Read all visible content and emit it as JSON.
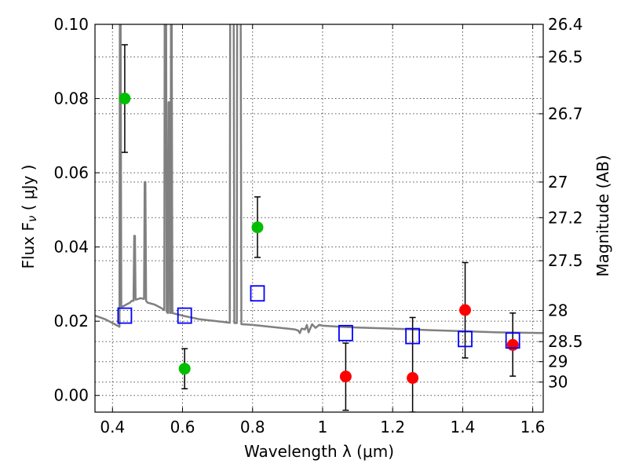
{
  "chart_data": {
    "type": "scatter",
    "xlabel": "Wavelength  λ (μm)",
    "ylabel": "Flux  F",
    "ylabel_sub": "ν",
    "ylabel_unit": " ( μJy )",
    "y2label": "Magnitude (AB)",
    "xlim": [
      0.35,
      1.63
    ],
    "ylim": [
      -0.0045,
      0.1
    ],
    "x_ticks": [
      0.4,
      0.6,
      0.8,
      1.0,
      1.2,
      1.4,
      1.6
    ],
    "x_tick_labels": [
      "0.4",
      "0.6",
      "0.8",
      "1",
      "1.2",
      "1.4",
      "1.6"
    ],
    "y_ticks": [
      0.0,
      0.02,
      0.04,
      0.06,
      0.08,
      0.1
    ],
    "y_tick_labels": [
      "0.00",
      "0.02",
      "0.04",
      "0.06",
      "0.08",
      "0.10"
    ],
    "magnitude_ticks": [
      {
        "label": "26.4",
        "flux": 0.1
      },
      {
        "label": "26.5",
        "flux": 0.0912
      },
      {
        "label": "26.7",
        "flux": 0.0759
      },
      {
        "label": "27",
        "flux": 0.0575
      },
      {
        "label": "27.2",
        "flux": 0.0479
      },
      {
        "label": "27.5",
        "flux": 0.0363
      },
      {
        "label": "28",
        "flux": 0.0229
      },
      {
        "label": "28.5",
        "flux": 0.0145
      },
      {
        "label": "29",
        "flux": 0.0091
      },
      {
        "label": "30",
        "flux": 0.0036
      }
    ],
    "grid": true,
    "colors": {
      "detections": "#00bf00",
      "upper_limits": "#ff0000",
      "model_photometry": "#0000ff",
      "model_spectrum": "#808080"
    },
    "series": [
      {
        "marker": "circle",
        "color": "#00bf00",
        "points": [
          {
            "x": 0.435,
            "y": 0.08,
            "yerr_low": 0.0655,
            "yerr_high": 0.0945
          },
          {
            "x": 0.606,
            "y": 0.0072,
            "yerr_low": 0.0018,
            "yerr_high": 0.0126
          },
          {
            "x": 0.814,
            "y": 0.0453,
            "yerr_low": 0.0372,
            "yerr_high": 0.0535
          }
        ]
      },
      {
        "marker": "circle",
        "color": "#ff0000",
        "points": [
          {
            "x": 1.066,
            "y": 0.0051,
            "yerr_low": -0.004,
            "yerr_high": 0.0141
          },
          {
            "x": 1.257,
            "y": 0.0047,
            "yerr_low": -0.0045,
            "yerr_high": 0.021
          },
          {
            "x": 1.407,
            "y": 0.023,
            "yerr_low": 0.0101,
            "yerr_high": 0.0358
          },
          {
            "x": 1.543,
            "y": 0.0136,
            "yerr_low": 0.0052,
            "yerr_high": 0.0222
          }
        ]
      },
      {
        "marker": "open-square",
        "color": "#0000ff",
        "points": [
          {
            "x": 0.435,
            "y": 0.0215
          },
          {
            "x": 0.606,
            "y": 0.0215
          },
          {
            "x": 0.814,
            "y": 0.0275
          },
          {
            "x": 1.066,
            "y": 0.0168
          },
          {
            "x": 1.257,
            "y": 0.016
          },
          {
            "x": 1.407,
            "y": 0.0152
          },
          {
            "x": 1.543,
            "y": 0.0148
          }
        ]
      },
      {
        "type": "line",
        "color": "#808080",
        "points": [
          [
            0.35,
            0.0215
          ],
          [
            0.38,
            0.0205
          ],
          [
            0.41,
            0.019
          ],
          [
            0.42,
            0.0185
          ],
          [
            0.421,
            0.105
          ],
          [
            0.423,
            0.105
          ],
          [
            0.425,
            0.024
          ],
          [
            0.43,
            0.024
          ],
          [
            0.44,
            0.0245
          ],
          [
            0.45,
            0.025
          ],
          [
            0.455,
            0.0255
          ],
          [
            0.46,
            0.0255
          ],
          [
            0.462,
            0.043
          ],
          [
            0.464,
            0.043
          ],
          [
            0.466,
            0.0258
          ],
          [
            0.48,
            0.0262
          ],
          [
            0.49,
            0.026
          ],
          [
            0.492,
            0.0575
          ],
          [
            0.494,
            0.0575
          ],
          [
            0.496,
            0.0255
          ],
          [
            0.5,
            0.025
          ],
          [
            0.52,
            0.0245
          ],
          [
            0.54,
            0.0235
          ],
          [
            0.548,
            0.023
          ],
          [
            0.549,
            0.105
          ],
          [
            0.553,
            0.105
          ],
          [
            0.555,
            0.0225
          ],
          [
            0.558,
            0.0222
          ],
          [
            0.56,
            0.079
          ],
          [
            0.562,
            0.079
          ],
          [
            0.564,
            0.0222
          ],
          [
            0.566,
            0.0222
          ],
          [
            0.567,
            0.105
          ],
          [
            0.569,
            0.105
          ],
          [
            0.571,
            0.0222
          ],
          [
            0.6,
            0.0215
          ],
          [
            0.65,
            0.0205
          ],
          [
            0.7,
            0.02
          ],
          [
            0.735,
            0.0196
          ],
          [
            0.736,
            0.105
          ],
          [
            0.746,
            0.105
          ],
          [
            0.748,
            0.0195
          ],
          [
            0.755,
            0.0195
          ],
          [
            0.756,
            0.105
          ],
          [
            0.766,
            0.105
          ],
          [
            0.768,
            0.0192
          ],
          [
            0.8,
            0.019
          ],
          [
            0.85,
            0.0185
          ],
          [
            0.9,
            0.018
          ],
          [
            0.92,
            0.0178
          ],
          [
            0.93,
            0.0175
          ],
          [
            0.935,
            0.0168
          ],
          [
            0.94,
            0.018
          ],
          [
            0.95,
            0.0178
          ],
          [
            0.955,
            0.019
          ],
          [
            0.96,
            0.017
          ],
          [
            0.97,
            0.0192
          ],
          [
            0.98,
            0.0182
          ],
          [
            0.99,
            0.019
          ],
          [
            1.0,
            0.0188
          ],
          [
            1.05,
            0.0185
          ],
          [
            1.1,
            0.0183
          ],
          [
            1.2,
            0.018
          ],
          [
            1.3,
            0.0176
          ],
          [
            1.4,
            0.0173
          ],
          [
            1.5,
            0.017
          ],
          [
            1.63,
            0.0168
          ]
        ]
      }
    ]
  }
}
